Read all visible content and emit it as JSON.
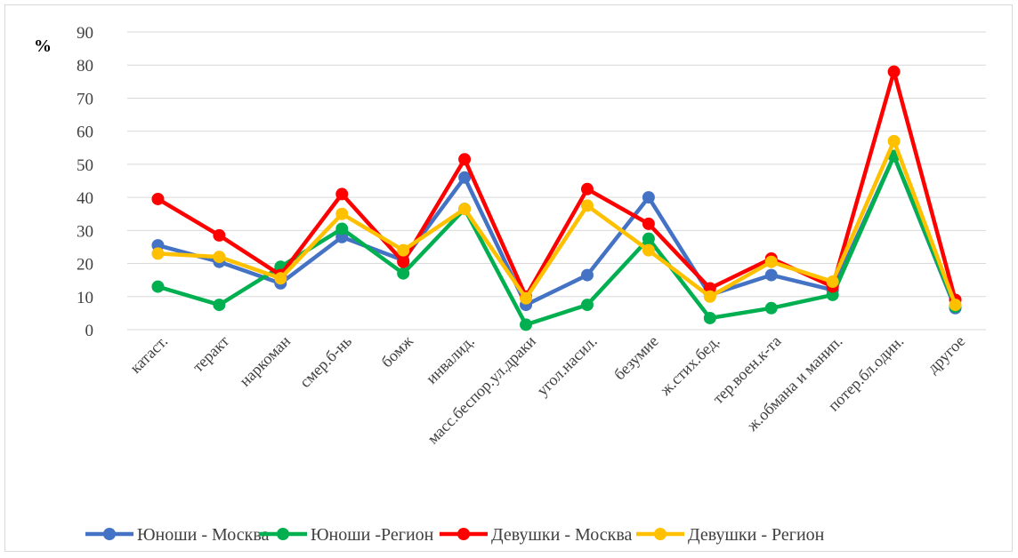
{
  "chart_data": {
    "type": "line",
    "title": "",
    "ylabel": "%",
    "xlabel": "",
    "ylim": [
      0,
      90
    ],
    "yticks": [
      0,
      10,
      20,
      30,
      40,
      50,
      60,
      70,
      80,
      90
    ],
    "grid": true,
    "legend_position": "bottom",
    "categories": [
      "катаст.",
      "теракт",
      "наркоман",
      "смер.б-нь",
      "бомж",
      "инвалид.",
      "масс.беспор.ул.драки",
      "угол.насил.",
      "безумие",
      "ж.стих.бед.",
      "тер.воен.к-та",
      "ж.обмана и манип.",
      "потер.бл.один.",
      "другое"
    ],
    "series": [
      {
        "name": "Юноши - Москва",
        "color": "#4472C4",
        "values": [
          25.5,
          20.5,
          14,
          28,
          21,
          46,
          7.5,
          16.5,
          40,
          10.5,
          16.5,
          12,
          52.5,
          6.5
        ]
      },
      {
        "name": "Юноши -Регион",
        "color": "#00B050",
        "values": [
          13,
          7.5,
          19,
          30.5,
          17,
          36.5,
          1.5,
          7.5,
          27.5,
          3.5,
          6.5,
          10.5,
          52.5,
          7
        ]
      },
      {
        "name": "Девушки - Москва",
        "color": "#FF0000",
        "values": [
          39.5,
          28.5,
          16.5,
          41,
          20.5,
          51.5,
          10,
          42.5,
          32,
          12.5,
          21.5,
          13,
          78,
          9
        ]
      },
      {
        "name": "Девушки - Регион",
        "color": "#FFC000",
        "values": [
          23,
          22,
          15.5,
          35,
          24,
          36.5,
          9.5,
          37.5,
          24,
          10,
          20.5,
          14.5,
          57,
          7.5
        ]
      }
    ]
  }
}
